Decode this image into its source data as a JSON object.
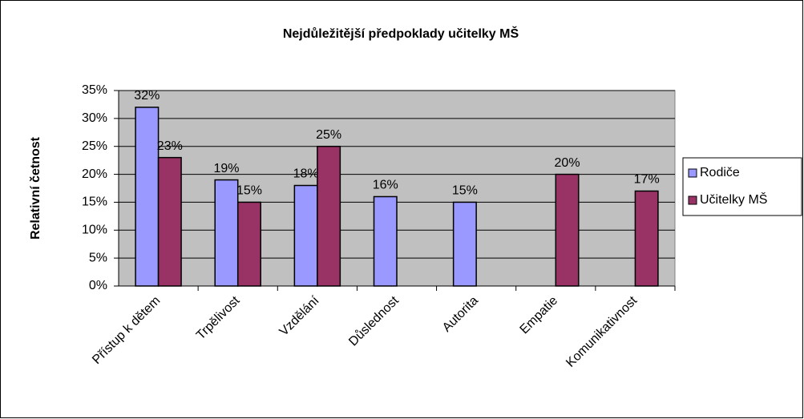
{
  "chart_data": {
    "type": "bar",
    "title": "Nejdůležitější předpoklady učitelky MŠ",
    "y_label": "Relativní četnost",
    "categories": [
      "Přístup k dětem",
      "Trpělivost",
      "Vzdělání",
      "Důslednost",
      "Autorita",
      "Empatie",
      "Komunikativnost"
    ],
    "series": [
      {
        "name": "Rodiče",
        "color": "#9999ff",
        "values": [
          32,
          19,
          18,
          16,
          15,
          null,
          null
        ],
        "value_labels": [
          "32%",
          "19%",
          "18%",
          "16%",
          "15%",
          null,
          null
        ]
      },
      {
        "name": "Učitelky MŠ",
        "color": "#993366",
        "values": [
          23,
          15,
          25,
          null,
          null,
          20,
          17
        ],
        "value_labels": [
          "23%",
          "15%",
          "25%",
          null,
          null,
          "20%",
          "17%"
        ]
      }
    ],
    "ylim": [
      0,
      35
    ],
    "yticks": [
      {
        "value": 0,
        "label": "0%"
      },
      {
        "value": 5,
        "label": "5%"
      },
      {
        "value": 10,
        "label": "10%"
      },
      {
        "value": 15,
        "label": "15%"
      },
      {
        "value": 20,
        "label": "20%"
      },
      {
        "value": 25,
        "label": "25%"
      },
      {
        "value": 30,
        "label": "30%"
      },
      {
        "value": 35,
        "label": "35%"
      }
    ],
    "grid": true,
    "plot_background": "#c0c0c0",
    "legend": "right"
  }
}
